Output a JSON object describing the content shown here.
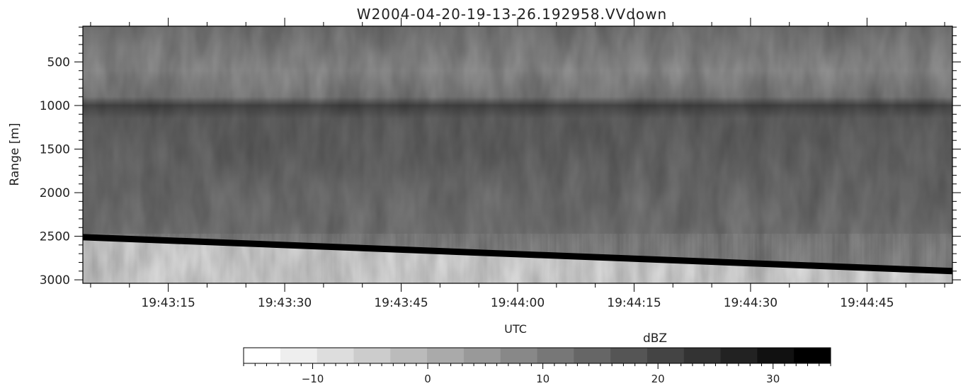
{
  "chart_data": {
    "type": "heatmap",
    "title": "W2004-04-20-19-13-26.192958.VVdown",
    "xlabel": "UTC",
    "ylabel": "Range [m]",
    "x_tick_labels": [
      "19:43:15",
      "19:43:30",
      "19:43:45",
      "19:44:00",
      "19:44:15",
      "19:44:30",
      "19:44:45"
    ],
    "xlim": [
      "19:43:04",
      "19:44:56"
    ],
    "y_tick_labels": [
      "500",
      "1000",
      "1500",
      "2000",
      "2500",
      "3000"
    ],
    "y_tick_values": [
      500,
      1000,
      1500,
      2000,
      2500,
      3000
    ],
    "ylim": [
      3040,
      90
    ],
    "y_inverted": true,
    "colormap": "grayscale (white = low, black = high)",
    "colorbar": {
      "label": "dBZ",
      "range": [
        -16,
        35
      ],
      "tick_labels": [
        "−10",
        "0",
        "10",
        "20",
        "30"
      ],
      "tick_values": [
        -10,
        0,
        10,
        20,
        30
      ],
      "levels": 16
    },
    "features": {
      "surface_echo": {
        "description": "black band",
        "range_start_m": 2490,
        "range_end_m": 2880,
        "value_dbz": 35
      },
      "below_surface_dbz": -10,
      "cloud_top_layer_dbz": 4,
      "layer_near_1000m_dbz": 20,
      "mid_column_dbz": 12
    }
  }
}
